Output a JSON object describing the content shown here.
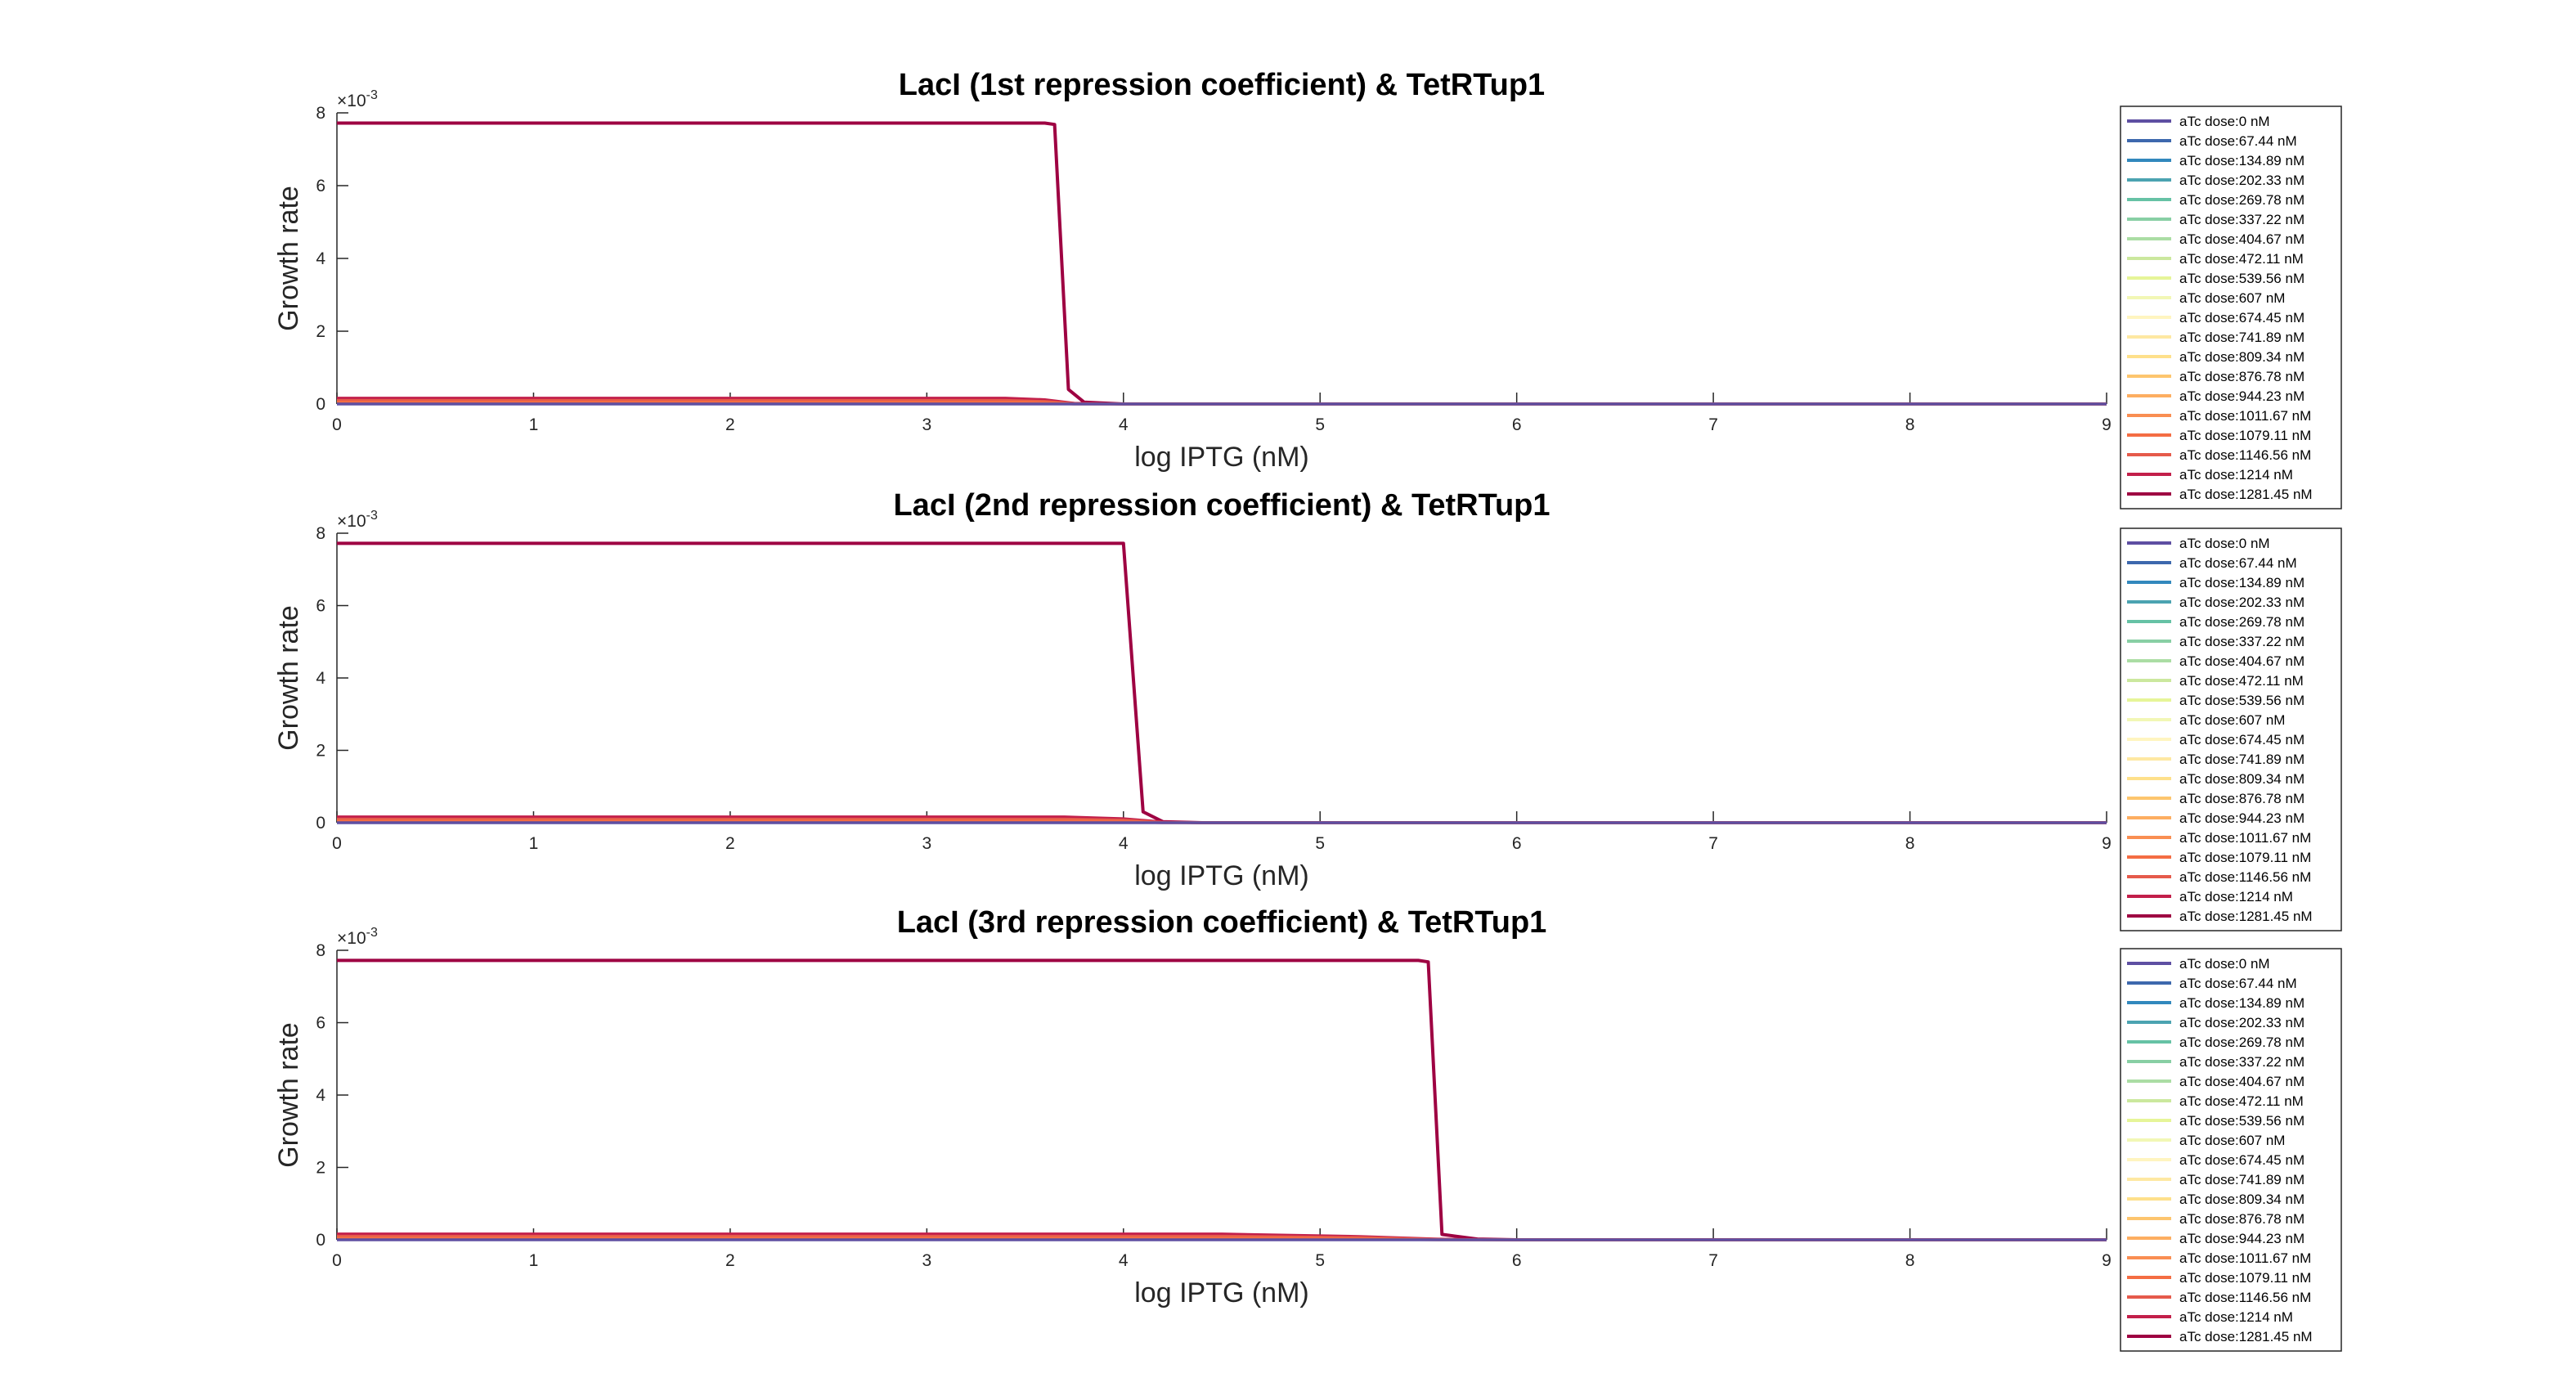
{
  "figure": {
    "x_scale_label": "×10",
    "legend_entries": [
      {
        "label": "aTc dose:0 nM",
        "color": "#5e4fa2"
      },
      {
        "label": "aTc dose:67.44 nM",
        "color": "#3d68ad"
      },
      {
        "label": "aTc dose:134.89 nM",
        "color": "#3288bd"
      },
      {
        "label": "aTc dose:202.33 nM",
        "color": "#4ba3b1"
      },
      {
        "label": "aTc dose:269.78 nM",
        "color": "#66c2a5"
      },
      {
        "label": "aTc dose:337.22 nM",
        "color": "#88cfa4"
      },
      {
        "label": "aTc dose:404.67 nM",
        "color": "#abdda4"
      },
      {
        "label": "aTc dose:472.11 nM",
        "color": "#cbe89e"
      },
      {
        "label": "aTc dose:539.56 nM",
        "color": "#e6f598"
      },
      {
        "label": "aTc dose:607 nM",
        "color": "#f2f7b5"
      },
      {
        "label": "aTc dose:674.45 nM",
        "color": "#fff5c0"
      },
      {
        "label": "aTc dose:741.89 nM",
        "color": "#fee8a2"
      },
      {
        "label": "aTc dose:809.34 nM",
        "color": "#fee08b"
      },
      {
        "label": "aTc dose:876.78 nM",
        "color": "#fdc56e"
      },
      {
        "label": "aTc dose:944.23 nM",
        "color": "#fdae61"
      },
      {
        "label": "aTc dose:1011.67 nM",
        "color": "#f98e52"
      },
      {
        "label": "aTc dose:1079.11 nM",
        "color": "#f46d43"
      },
      {
        "label": "aTc dose:1146.56 nM",
        "color": "#e55a4b"
      },
      {
        "label": "aTc dose:1214 nM",
        "color": "#c21f4a"
      },
      {
        "label": "aTc dose:1281.45 nM",
        "color": "#9e0142"
      }
    ]
  },
  "chart_data": [
    {
      "type": "line",
      "title": "LacI (1st repression coefficient) & TetRTup1",
      "xlabel": "log IPTG (nM)",
      "ylabel": "Growth rate",
      "y_exponent": "-3",
      "xlim": [
        0,
        9
      ],
      "ylim": [
        0,
        0.008
      ],
      "xticks": [
        "0",
        "1",
        "2",
        "3",
        "4",
        "5",
        "6",
        "7",
        "8",
        "9"
      ],
      "yticks": [
        "0",
        "2",
        "4",
        "6",
        "8"
      ],
      "grid": false,
      "legend_position": "right",
      "series": [
        {
          "name": "aTc dose:1281.45 nM",
          "points": [
            [
              0,
              0.00772
            ],
            [
              3.6,
              0.00772
            ],
            [
              3.65,
              0.00768
            ],
            [
              3.72,
              0.0004
            ],
            [
              3.8,
              5e-05
            ],
            [
              4.0,
              0
            ],
            [
              9,
              0
            ]
          ]
        },
        {
          "name": "aTc dose:1214 nM",
          "points": [
            [
              0,
              0.00016
            ],
            [
              3.4,
              0.00016
            ],
            [
              3.6,
              0.00012
            ],
            [
              3.75,
              2e-05
            ],
            [
              4.0,
              0
            ],
            [
              9,
              0
            ]
          ]
        },
        {
          "name": "aTc dose:1146.56 nM",
          "points": [
            [
              0,
              0.0001
            ],
            [
              3.4,
              0.0001
            ],
            [
              3.6,
              7e-05
            ],
            [
              3.75,
              1e-05
            ],
            [
              4.0,
              0
            ],
            [
              9,
              0
            ]
          ]
        },
        {
          "name": "aTc dose:1079.11 nM",
          "points": [
            [
              0,
              5e-05
            ],
            [
              3.5,
              5e-05
            ],
            [
              3.75,
              0
            ],
            [
              9,
              0
            ]
          ]
        },
        {
          "name": "aTc dose:0 nM",
          "points": [
            [
              0,
              0
            ],
            [
              9,
              0
            ]
          ]
        }
      ]
    },
    {
      "type": "line",
      "title": "LacI (2nd repression coefficient) & TetRTup1",
      "xlabel": "log IPTG (nM)",
      "ylabel": "Growth rate",
      "y_exponent": "-3",
      "xlim": [
        0,
        9
      ],
      "ylim": [
        0,
        0.008
      ],
      "xticks": [
        "0",
        "1",
        "2",
        "3",
        "4",
        "5",
        "6",
        "7",
        "8",
        "9"
      ],
      "yticks": [
        "0",
        "2",
        "4",
        "6",
        "8"
      ],
      "grid": false,
      "legend_position": "right",
      "series": [
        {
          "name": "aTc dose:1281.45 nM",
          "points": [
            [
              0,
              0.00772
            ],
            [
              4.0,
              0.00772
            ],
            [
              4.1,
              0.0003
            ],
            [
              4.2,
              3e-05
            ],
            [
              4.4,
              0
            ],
            [
              9,
              0
            ]
          ]
        },
        {
          "name": "aTc dose:1214 nM",
          "points": [
            [
              0,
              0.00016
            ],
            [
              3.7,
              0.00016
            ],
            [
              4.0,
              0.00011
            ],
            [
              4.2,
              2e-05
            ],
            [
              4.4,
              0
            ],
            [
              9,
              0
            ]
          ]
        },
        {
          "name": "aTc dose:1146.56 nM",
          "points": [
            [
              0,
              0.0001
            ],
            [
              3.7,
              0.0001
            ],
            [
              4.0,
              7e-05
            ],
            [
              4.2,
              1e-05
            ],
            [
              4.4,
              0
            ],
            [
              9,
              0
            ]
          ]
        },
        {
          "name": "aTc dose:1079.11 nM",
          "points": [
            [
              0,
              5e-05
            ],
            [
              3.8,
              5e-05
            ],
            [
              4.2,
              0
            ],
            [
              9,
              0
            ]
          ]
        },
        {
          "name": "aTc dose:0 nM",
          "points": [
            [
              0,
              0
            ],
            [
              9,
              0
            ]
          ]
        }
      ]
    },
    {
      "type": "line",
      "title": "LacI (3rd repression coefficient) & TetRTup1",
      "xlabel": "log IPTG (nM)",
      "ylabel": "Growth rate",
      "y_exponent": "-3",
      "xlim": [
        0,
        9
      ],
      "ylim": [
        0,
        0.008
      ],
      "xticks": [
        "0",
        "1",
        "2",
        "3",
        "4",
        "5",
        "6",
        "7",
        "8",
        "9"
      ],
      "yticks": [
        "0",
        "2",
        "4",
        "6",
        "8"
      ],
      "grid": false,
      "legend_position": "right",
      "series": [
        {
          "name": "aTc dose:1281.45 nM",
          "points": [
            [
              0,
              0.00772
            ],
            [
              5.5,
              0.00772
            ],
            [
              5.55,
              0.00768
            ],
            [
              5.62,
              0.00015
            ],
            [
              5.8,
              2e-05
            ],
            [
              6.0,
              0
            ],
            [
              9,
              0
            ]
          ]
        },
        {
          "name": "aTc dose:1214 nM",
          "points": [
            [
              0,
              0.00016
            ],
            [
              4.5,
              0.00016
            ],
            [
              5.2,
              9e-05
            ],
            [
              5.6,
              2e-05
            ],
            [
              5.9,
              0
            ],
            [
              9,
              0
            ]
          ]
        },
        {
          "name": "aTc dose:1146.56 nM",
          "points": [
            [
              0,
              0.0001
            ],
            [
              4.5,
              0.0001
            ],
            [
              5.2,
              6e-05
            ],
            [
              5.6,
              1e-05
            ],
            [
              5.9,
              0
            ],
            [
              9,
              0
            ]
          ]
        },
        {
          "name": "aTc dose:1079.11 nM",
          "points": [
            [
              0,
              5e-05
            ],
            [
              4.8,
              5e-05
            ],
            [
              5.6,
              0
            ],
            [
              9,
              0
            ]
          ]
        },
        {
          "name": "aTc dose:0 nM",
          "points": [
            [
              0,
              0
            ],
            [
              9,
              0
            ]
          ]
        }
      ]
    }
  ]
}
